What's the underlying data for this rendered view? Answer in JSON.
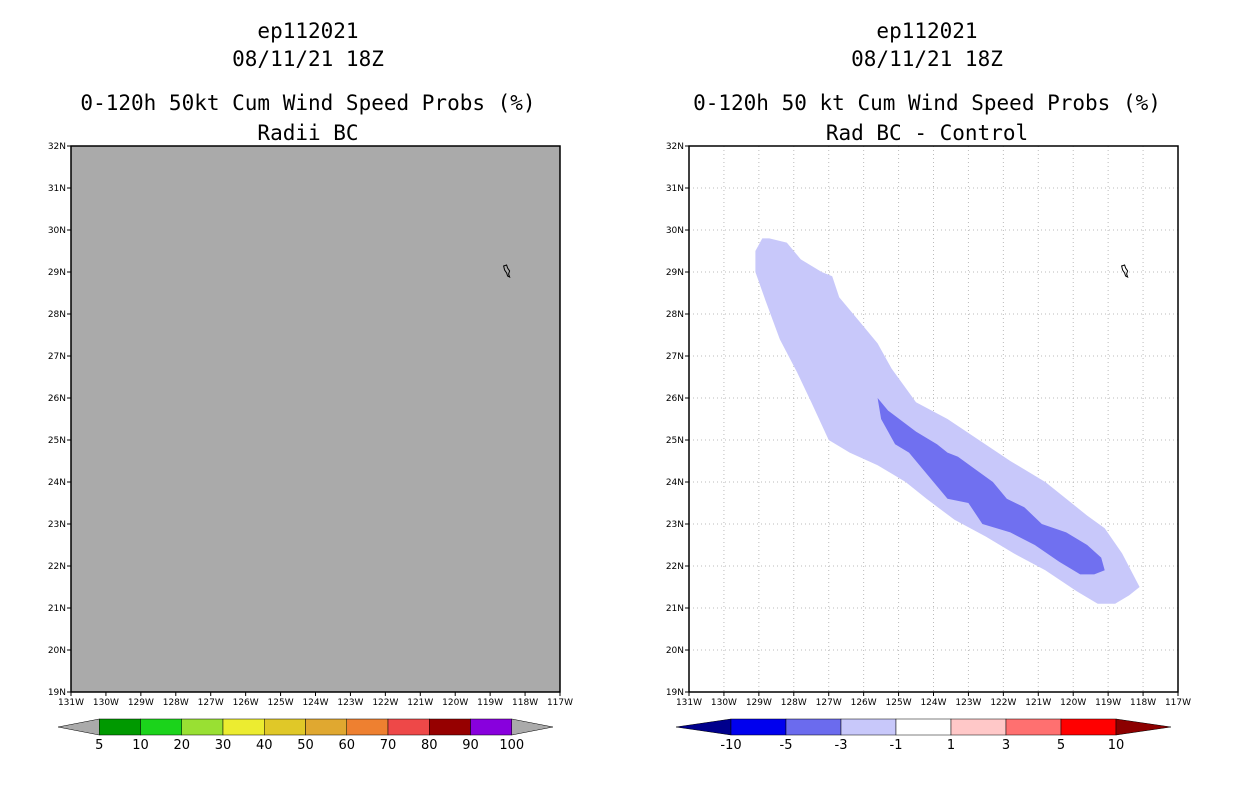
{
  "chart_data": [
    {
      "type": "heatmap",
      "storm_id": "ep112021",
      "datetime": "08/11/21 18Z",
      "title": "0-120h 50kt Cum Wind Speed Probs (%)",
      "subtitle": "Radii BC",
      "lon_range": [
        -131,
        -117
      ],
      "lat_range": [
        19,
        32
      ],
      "lon_tick_labels": [
        "131W",
        "130W",
        "129W",
        "128W",
        "127W",
        "126W",
        "125W",
        "124W",
        "123W",
        "122W",
        "121W",
        "120W",
        "119W",
        "118W",
        "117W"
      ],
      "lat_tick_labels": [
        "19N",
        "20N",
        "21N",
        "22N",
        "23N",
        "24N",
        "25N",
        "26N",
        "27N",
        "28N",
        "29N",
        "30N",
        "31N",
        "32N"
      ],
      "background_fill": "#aaaaaa",
      "grid": false,
      "field_description": "uniform field, no probability contours shown",
      "colorbar": {
        "labels": [
          "5",
          "10",
          "20",
          "30",
          "40",
          "50",
          "60",
          "70",
          "80",
          "90",
          "100"
        ],
        "colors": [
          "#009900",
          "#1bd31b",
          "#99e033",
          "#ecec30",
          "#e0c828",
          "#e0a830",
          "#ee8030",
          "#ee4848",
          "#960000",
          "#8800dd"
        ],
        "end_color": "#aaaaaa"
      }
    },
    {
      "type": "heatmap",
      "storm_id": "ep112021",
      "datetime": "08/11/21 18Z",
      "title": "0-120h 50 kt Cum Wind Speed Probs (%)",
      "subtitle": "Rad BC - Control",
      "lon_range": [
        -131,
        -117
      ],
      "lat_range": [
        19,
        32
      ],
      "lon_tick_labels": [
        "131W",
        "130W",
        "129W",
        "128W",
        "127W",
        "126W",
        "125W",
        "124W",
        "123W",
        "122W",
        "121W",
        "120W",
        "119W",
        "118W",
        "117W"
      ],
      "lat_tick_labels": [
        "19N",
        "20N",
        "21N",
        "22N",
        "23N",
        "24N",
        "25N",
        "26N",
        "27N",
        "28N",
        "29N",
        "30N",
        "31N",
        "32N"
      ],
      "background_fill": "#ffffff",
      "grid": true,
      "regions": [
        {
          "level": "-3 to -1",
          "color": "#c8c8fa",
          "polygon": [
            [
              -129.1,
              29.5
            ],
            [
              -128.9,
              29.8
            ],
            [
              -128.7,
              29.8
            ],
            [
              -128.2,
              29.7
            ],
            [
              -127.8,
              29.3
            ],
            [
              -127.2,
              29.0
            ],
            [
              -126.9,
              28.9
            ],
            [
              -126.7,
              28.4
            ],
            [
              -126.1,
              27.8
            ],
            [
              -125.6,
              27.3
            ],
            [
              -125.2,
              26.7
            ],
            [
              -124.5,
              25.9
            ],
            [
              -123.6,
              25.5
            ],
            [
              -122.7,
              25.0
            ],
            [
              -121.8,
              24.5
            ],
            [
              -120.8,
              24.0
            ],
            [
              -120.2,
              23.6
            ],
            [
              -119.6,
              23.2
            ],
            [
              -119.1,
              22.9
            ],
            [
              -118.6,
              22.3
            ],
            [
              -118.1,
              21.5
            ],
            [
              -118.4,
              21.3
            ],
            [
              -118.8,
              21.1
            ],
            [
              -119.3,
              21.1
            ],
            [
              -119.9,
              21.4
            ],
            [
              -120.8,
              21.9
            ],
            [
              -121.7,
              22.3
            ],
            [
              -122.5,
              22.7
            ],
            [
              -123.4,
              23.1
            ],
            [
              -124.2,
              23.6
            ],
            [
              -124.8,
              24.0
            ],
            [
              -125.6,
              24.4
            ],
            [
              -126.4,
              24.7
            ],
            [
              -127.0,
              25.0
            ],
            [
              -127.5,
              25.9
            ],
            [
              -127.9,
              26.6
            ],
            [
              -128.4,
              27.4
            ],
            [
              -128.8,
              28.3
            ],
            [
              -129.1,
              29.0
            ]
          ]
        },
        {
          "level": "-5 to -3",
          "color": "#7070f0",
          "polygon": [
            [
              -125.6,
              26.0
            ],
            [
              -125.3,
              25.7
            ],
            [
              -124.5,
              25.2
            ],
            [
              -123.9,
              24.9
            ],
            [
              -123.6,
              24.7
            ],
            [
              -123.3,
              24.6
            ],
            [
              -122.8,
              24.3
            ],
            [
              -122.3,
              24.0
            ],
            [
              -121.9,
              23.6
            ],
            [
              -121.4,
              23.4
            ],
            [
              -120.9,
              23.0
            ],
            [
              -120.2,
              22.8
            ],
            [
              -119.6,
              22.5
            ],
            [
              -119.2,
              22.2
            ],
            [
              -119.1,
              21.9
            ],
            [
              -119.4,
              21.8
            ],
            [
              -119.8,
              21.8
            ],
            [
              -120.4,
              22.1
            ],
            [
              -121.1,
              22.5
            ],
            [
              -121.8,
              22.8
            ],
            [
              -122.6,
              23.0
            ],
            [
              -123.0,
              23.5
            ],
            [
              -123.6,
              23.6
            ],
            [
              -124.0,
              24.0
            ],
            [
              -124.7,
              24.7
            ],
            [
              -125.1,
              24.9
            ],
            [
              -125.5,
              25.5
            ]
          ]
        }
      ],
      "island_marker": "29N 118.5W",
      "colorbar": {
        "labels": [
          "-10",
          "-5",
          "-3",
          "-1",
          "1",
          "3",
          "5",
          "10"
        ],
        "colors": [
          "#0000ee",
          "#6b6bee",
          "#c8c8fa",
          "#ffffff",
          "#ffc8c8",
          "#ff7070",
          "#ff0000"
        ],
        "low_end_color": "#00008c",
        "high_end_color": "#8c0000"
      }
    }
  ]
}
